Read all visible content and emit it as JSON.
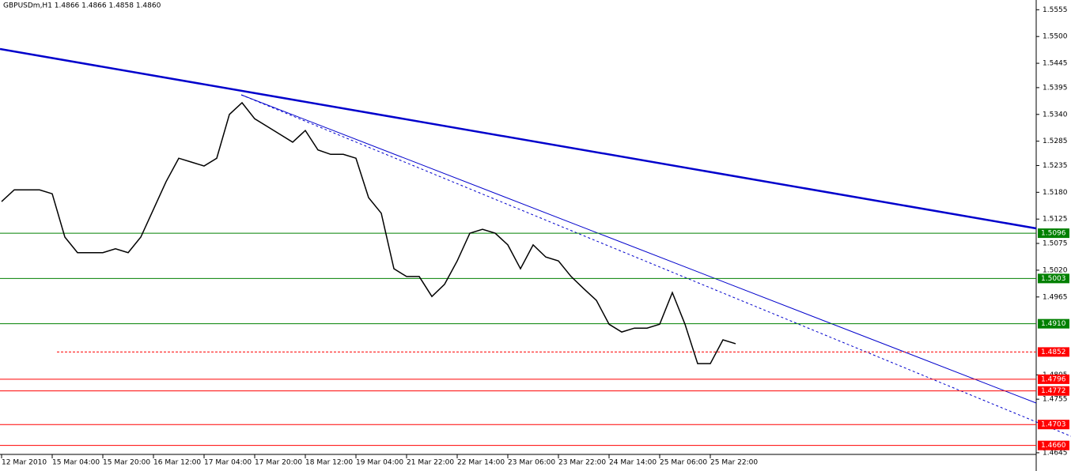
{
  "chart_data": {
    "type": "line",
    "title": "GBPUSDm,H1  1.4866 1.4866 1.4858 1.4860",
    "color": "#000000",
    "categories": [
      "12 Mar 2010",
      null,
      null,
      null,
      "15 Mar 04:00",
      null,
      null,
      null,
      "15 Mar 20:00",
      null,
      null,
      null,
      "16 Mar 12:00",
      null,
      null,
      null,
      "17 Mar 04:00",
      null,
      null,
      null,
      "17 Mar 20:00",
      null,
      null,
      null,
      "18 Mar 12:00",
      null,
      null,
      null,
      "19 Mar 04:00",
      null,
      null,
      null,
      "21 Mar 22:00",
      null,
      null,
      null,
      "22 Mar 14:00",
      null,
      null,
      null,
      "23 Mar 06:00",
      null,
      null,
      null,
      "23 Mar 22:00",
      null,
      null,
      null,
      "24 Mar 14:00",
      null,
      null,
      null,
      "25 Mar 06:00",
      null,
      null,
      null,
      "25 Mar 22:00",
      null,
      null
    ],
    "values": [
      1.5161,
      1.5185,
      1.5185,
      1.5185,
      1.5177,
      1.5088,
      1.5056,
      1.5056,
      1.5056,
      1.5064,
      1.5056,
      1.5088,
      1.5145,
      1.5202,
      1.525,
      1.5242,
      1.5234,
      1.525,
      1.534,
      1.5364,
      1.5331,
      1.5315,
      1.5299,
      1.5283,
      1.5307,
      1.5267,
      1.5258,
      1.5258,
      1.525,
      1.5169,
      1.5137,
      1.5023,
      1.5007,
      1.5007,
      1.4966,
      1.4991,
      1.5039,
      1.5096,
      1.5104,
      1.5096,
      1.5072,
      1.5023,
      1.5072,
      1.5047,
      1.5039,
      1.5007,
      1.4982,
      1.4958,
      1.4909,
      1.4893,
      1.4901,
      1.4901,
      1.4909,
      1.4974,
      1.4909,
      1.4828,
      1.4828,
      1.4877,
      1.4869
    ],
    "ylim": [
      1.464,
      1.5575
    ],
    "yticks": [
      {
        "value": 1.5555,
        "label": "1.5555"
      },
      {
        "value": 1.55,
        "label": "1.5500"
      },
      {
        "value": 1.5445,
        "label": "1.5445"
      },
      {
        "value": 1.5395,
        "label": "1.5395"
      },
      {
        "value": 1.534,
        "label": "1.5340"
      },
      {
        "value": 1.5285,
        "label": "1.5285"
      },
      {
        "value": 1.5235,
        "label": "1.5235"
      },
      {
        "value": 1.518,
        "label": "1.5180"
      },
      {
        "value": 1.5125,
        "label": "1.5125"
      },
      {
        "value": 1.5075,
        "label": "1.5075"
      },
      {
        "value": 1.502,
        "label": "1.5020"
      },
      {
        "value": 1.4965,
        "label": "1.4965"
      },
      {
        "value": 1.4805,
        "label": "1.4805"
      },
      {
        "value": 1.4755,
        "label": "1.4755"
      },
      {
        "value": 1.4645,
        "label": "1.4645"
      }
    ],
    "levels": [
      {
        "value": 1.5096,
        "label": "1.5096",
        "color": "#008000",
        "dashed": false
      },
      {
        "value": 1.5003,
        "label": "1.5003",
        "color": "#008000",
        "dashed": false
      },
      {
        "value": 1.491,
        "label": "1.4910",
        "color": "#008000",
        "dashed": false
      },
      {
        "value": 1.4852,
        "label": "1.4852",
        "color": "#ff0000",
        "dashed": true
      },
      {
        "value": 1.4796,
        "label": "1.4796",
        "color": "#ff0000",
        "dashed": false
      },
      {
        "value": 1.4772,
        "label": "1.4772",
        "color": "#ff0000",
        "dashed": false
      },
      {
        "value": 1.4703,
        "label": "1.4703",
        "color": "#ff0000",
        "dashed": false
      },
      {
        "value": 1.466,
        "label": "1.4660",
        "color": "#ff0000",
        "dashed": false
      }
    ]
  }
}
